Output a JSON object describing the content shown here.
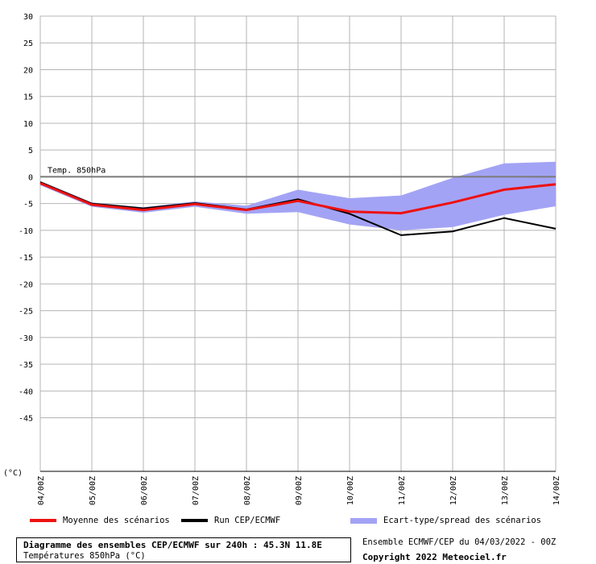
{
  "chart_data": {
    "type": "line",
    "series_label_on_plot": "Temp. 850hPa",
    "unit_label": "(°C)",
    "ylim": [
      -55,
      30
    ],
    "yticks": [
      30,
      25,
      20,
      15,
      10,
      5,
      0,
      -5,
      -10,
      -15,
      -20,
      -25,
      -30,
      -35,
      -40,
      -45
    ],
    "x": [
      "04/00Z",
      "05/00Z",
      "06/00Z",
      "07/00Z",
      "08/00Z",
      "09/00Z",
      "10/00Z",
      "11/00Z",
      "12/00Z",
      "13/00Z",
      "14/00Z"
    ],
    "grid": true,
    "series": [
      {
        "name": "Moyenne des scénarios",
        "color": "#ee1111",
        "values": [
          -1.2,
          -5.2,
          -6.2,
          -5.1,
          -6.2,
          -4.5,
          -6.5,
          -6.8,
          -4.8,
          -2.4,
          -1.4
        ]
      },
      {
        "name": "Run CEP/ECMWF",
        "color": "#000000",
        "values": [
          -1.0,
          -5.0,
          -5.9,
          -4.9,
          -6.1,
          -4.2,
          -6.9,
          -10.9,
          -10.2,
          -7.7,
          -9.7
        ]
      }
    ],
    "spread": {
      "name": "Ecart-type/spread des scénarios",
      "color": "#a3a3f5",
      "upper": [
        -0.8,
        -4.8,
        -5.7,
        -4.6,
        -5.4,
        -2.4,
        -4.0,
        -3.5,
        -0.2,
        2.5,
        2.8
      ],
      "lower": [
        -1.6,
        -5.6,
        -6.7,
        -5.6,
        -6.9,
        -6.6,
        -8.9,
        -10.0,
        -9.4,
        -7.1,
        -5.5
      ]
    }
  },
  "legend": {
    "mean_label": "Moyenne des scénarios",
    "run_label": "Run CEP/ECMWF",
    "spread_label": "Ecart-type/spread des scénarios"
  },
  "footer": {
    "title": "Diagramme des ensembles CEP/ECMWF sur 240h : 45.3N 11.8E",
    "subtitle": "Températures 850hPa (°C)",
    "run_info": "Ensemble ECMWF/CEP du 04/03/2022 - 00Z",
    "copyright": "Copyright 2022 Meteociel.fr"
  }
}
